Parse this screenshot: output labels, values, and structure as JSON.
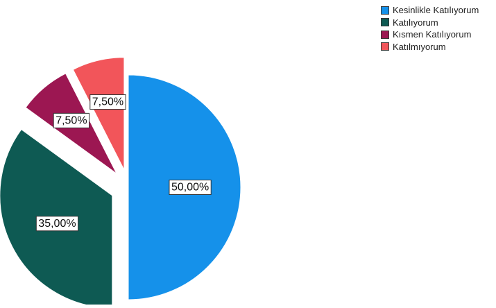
{
  "chart_data": {
    "type": "pie",
    "categories": [
      "Kesinlikle Katılıyorum",
      "Katılıyorum",
      "Kısmen Katılıyorum",
      "Katılmıyorum"
    ],
    "values": [
      50.0,
      35.0,
      7.5,
      7.5
    ],
    "data_labels": [
      "50,00%",
      "35,00%",
      "7,50%",
      "7,50%"
    ],
    "colors": [
      "#1591EA",
      "#0E5A53",
      "#9C1752",
      "#F2555A"
    ],
    "exploded": [
      false,
      true,
      true,
      true
    ],
    "start_angle_deg": 0,
    "direction": "clockwise",
    "legend_position": "top-right",
    "title": ""
  }
}
